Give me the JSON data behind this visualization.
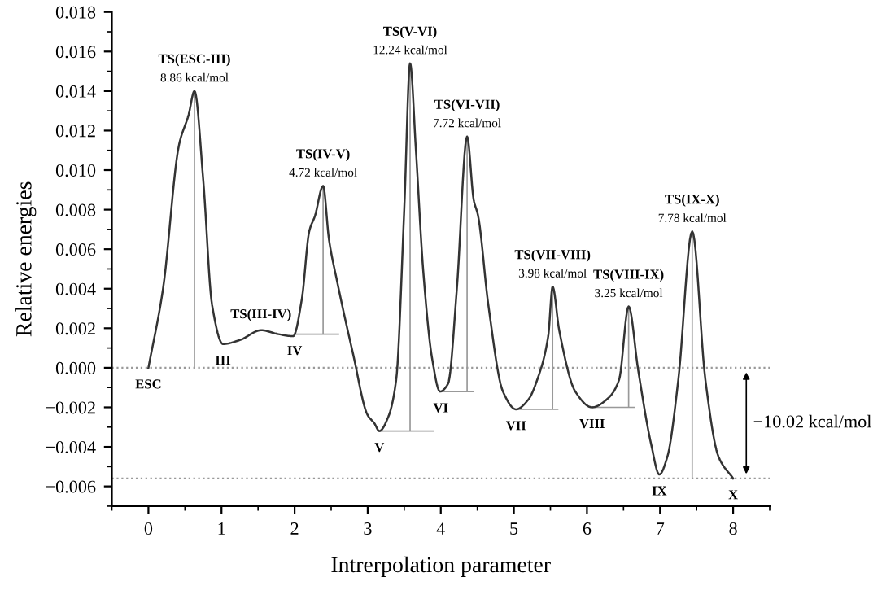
{
  "chart_data": {
    "type": "line",
    "xlabel": "Intrerpolation parameter",
    "ylabel": "Relative energies",
    "xlim": [
      -0.5,
      8.5
    ],
    "ylim": [
      -0.007,
      0.018
    ],
    "xticks": [
      0,
      1,
      2,
      3,
      4,
      5,
      6,
      7,
      8
    ],
    "yticks": [
      {
        "value": -0.006,
        "label": "−0.006"
      },
      {
        "value": -0.004,
        "label": "−0.004"
      },
      {
        "value": -0.002,
        "label": "−0.002"
      },
      {
        "value": 0,
        "label": "0.000"
      },
      {
        "value": 0.002,
        "label": "0.002"
      },
      {
        "value": 0.004,
        "label": "0.004"
      },
      {
        "value": 0.006,
        "label": "0.006"
      },
      {
        "value": 0.008,
        "label": "0.008"
      },
      {
        "value": 0.01,
        "label": "0.010"
      },
      {
        "value": 0.012,
        "label": "0.012"
      },
      {
        "value": 0.014,
        "label": "0.014"
      },
      {
        "value": 0.016,
        "label": "0.016"
      },
      {
        "value": 0.018,
        "label": "0.018"
      }
    ],
    "grid": false,
    "marker": "none",
    "line_style": "solid",
    "series": [
      {
        "color": "#333333",
        "x": [
          0,
          0.2,
          0.42,
          0.55,
          0.63,
          0.75,
          0.87,
          1.02,
          1.25,
          1.54,
          1.78,
          1.98,
          2.1,
          2.2,
          2.28,
          2.39,
          2.47,
          2.58,
          2.8,
          3.0,
          3.09,
          3.16,
          3.28,
          3.39,
          3.5,
          3.58,
          3.66,
          3.76,
          3.88,
          3.99,
          4.1,
          4.22,
          4.36,
          4.45,
          4.51,
          4.65,
          4.85,
          5.03,
          5.2,
          5.32,
          5.47,
          5.53,
          5.62,
          5.84,
          6.07,
          6.3,
          6.44,
          6.57,
          6.7,
          6.88,
          6.99,
          7.1,
          7.25,
          7.44,
          7.62,
          7.8,
          8.0
        ],
        "values": [
          0,
          0.004,
          0.0113,
          0.0128,
          0.014,
          0.0095,
          0.0032,
          0.0012,
          0.0014,
          0.0019,
          0.0017,
          0.0016,
          0.0035,
          0.0069,
          0.0077,
          0.0092,
          0.0065,
          0.0044,
          0.0007,
          -0.0024,
          -0.0028,
          -0.0032,
          -0.0025,
          -0.0006,
          0.008,
          0.0154,
          0.011,
          0.0049,
          0.0005,
          -0.0012,
          -0.0008,
          0.004,
          0.0117,
          0.0085,
          0.0077,
          0.0032,
          -0.0012,
          -0.0021,
          -0.0016,
          -0.0006,
          0.0016,
          0.0041,
          0.0019,
          -0.0012,
          -0.002,
          -0.0015,
          -0.0006,
          0.0031,
          -0.0001,
          -0.0039,
          -0.0054,
          -0.0045,
          -0.0006,
          0.0069,
          -0.0006,
          -0.0045,
          -0.0056
        ]
      },
      {
        "color": "#999999",
        "type": "line",
        "x": [
          0.63,
          0.63,
          null,
          2.0,
          2.6,
          null,
          2.39,
          2.39,
          null,
          3.16,
          3.9,
          null,
          3.58,
          3.58,
          null,
          4.0,
          4.45,
          null,
          4.36,
          4.36,
          null,
          5.03,
          5.6,
          null,
          5.53,
          5.53,
          null,
          6.07,
          6.65,
          null,
          6.57,
          6.57,
          null,
          7.44,
          7.44
        ],
        "values": [
          0,
          0.014,
          null,
          0.0017,
          0.0017,
          null,
          0.0017,
          0.0092,
          null,
          -0.0032,
          -0.0032,
          null,
          -0.0032,
          0.0154,
          null,
          -0.0012,
          -0.0012,
          null,
          -0.0012,
          0.0117,
          null,
          -0.0021,
          -0.0021,
          null,
          -0.0021,
          0.0041,
          null,
          -0.002,
          -0.002,
          null,
          -0.002,
          0.0031,
          null,
          -0.0056,
          0.0069
        ]
      }
    ],
    "ref_lines": [
      {
        "axis": "y",
        "value": 0,
        "color": "#999999",
        "line_style": "dotted"
      },
      {
        "axis": "y",
        "value": -0.0056,
        "color": "#999999",
        "line_style": "dotted"
      }
    ],
    "annotations": [
      {
        "text": "TS(ESC-III)\n8.86 kcal/mol",
        "x": 0.63,
        "y": 0.014
      },
      {
        "text": "TS(III-IV)",
        "x": 1.54,
        "y": 0.0019
      },
      {
        "text": "TS(IV-V)\n4.72 kcal/mol",
        "x": 2.39,
        "y": 0.0092
      },
      {
        "text": "TS(V-VI)\n12.24 kcal/mol",
        "x": 3.58,
        "y": 0.0154
      },
      {
        "text": "TS(VI-VII)\n7.72 kcal/mol",
        "x": 4.36,
        "y": 0.0117
      },
      {
        "text": "TS(VII-VIII)\n3.98 kcal/mol",
        "x": 5.53,
        "y": 0.0041
      },
      {
        "text": "TS(VIII-IX)\n3.25 kcal/mol",
        "x": 6.57,
        "y": 0.0031
      },
      {
        "text": "TS(IX-X)\n7.78 kcal/mol",
        "x": 7.44,
        "y": 0.0069
      },
      {
        "text": "ESC",
        "x": 0.0,
        "y": 0
      },
      {
        "text": "III",
        "x": 1.02,
        "y": 0.0012
      },
      {
        "text": "IV",
        "x": 2.0,
        "y": 0.0017
      },
      {
        "text": "V",
        "x": 3.16,
        "y": -0.0032
      },
      {
        "text": "VI",
        "x": 4.0,
        "y": -0.0012
      },
      {
        "text": "VII",
        "x": 5.03,
        "y": -0.0021
      },
      {
        "text": "VIII",
        "x": 6.07,
        "y": -0.002
      },
      {
        "text": "IX",
        "x": 6.99,
        "y": -0.0054
      },
      {
        "text": "X",
        "x": 8.0,
        "y": -0.0056
      },
      "−10.02 kcal/mol"
    ]
  }
}
